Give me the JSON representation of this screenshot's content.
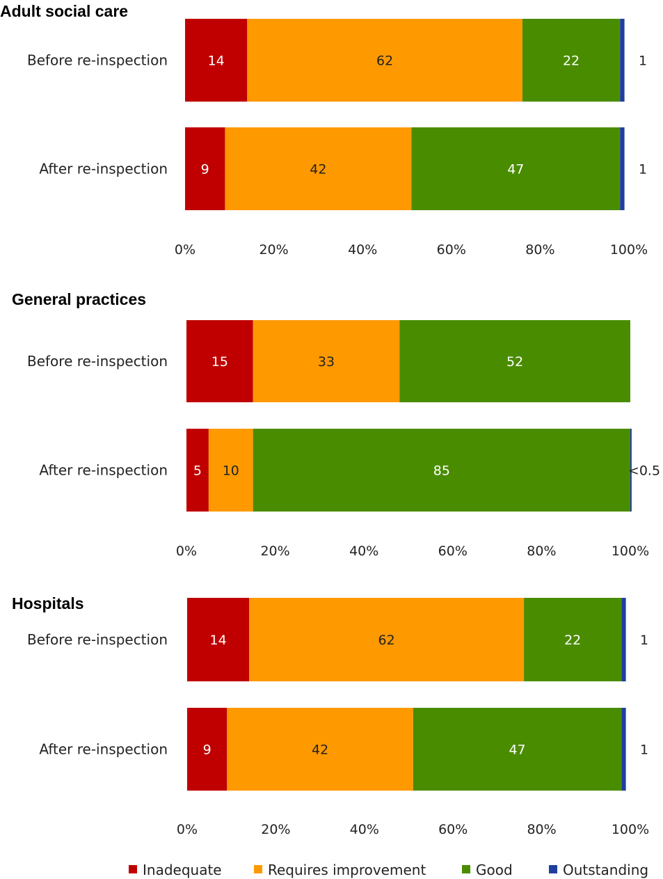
{
  "chart_data": [
    {
      "type": "bar",
      "orientation": "horizontal",
      "stacked": "percent",
      "title": "Adult social care",
      "categories": [
        "Before re-inspection",
        "After re-inspection"
      ],
      "series": [
        {
          "name": "Inadequate",
          "values": [
            14,
            9
          ],
          "labels": [
            "14",
            "9"
          ]
        },
        {
          "name": "Requires improvement",
          "values": [
            62,
            42
          ],
          "labels": [
            "62",
            "42"
          ]
        },
        {
          "name": "Good",
          "values": [
            22,
            47
          ],
          "labels": [
            "22",
            "47"
          ]
        },
        {
          "name": "Outstanding",
          "values": [
            1,
            1
          ],
          "labels": [
            "1",
            "1"
          ]
        }
      ],
      "xticks": [
        "0%",
        "20%",
        "40%",
        "60%",
        "80%",
        "100%"
      ],
      "xlim": [
        0,
        100
      ]
    },
    {
      "type": "bar",
      "orientation": "horizontal",
      "stacked": "percent",
      "title": "General practices",
      "categories": [
        "Before re-inspection",
        "After re-inspection"
      ],
      "series": [
        {
          "name": "Inadequate",
          "values": [
            15,
            5
          ],
          "labels": [
            "15",
            "5"
          ]
        },
        {
          "name": "Requires improvement",
          "values": [
            33,
            10
          ],
          "labels": [
            "33",
            "10"
          ]
        },
        {
          "name": "Good",
          "values": [
            52,
            85
          ],
          "labels": [
            "52",
            "85"
          ]
        },
        {
          "name": "Outstanding",
          "values": [
            0,
            0.3
          ],
          "labels": [
            "",
            "<0.5"
          ]
        }
      ],
      "xticks": [
        "0%",
        "20%",
        "40%",
        "60%",
        "80%",
        "100%"
      ],
      "xlim": [
        0,
        100
      ]
    },
    {
      "type": "bar",
      "orientation": "horizontal",
      "stacked": "percent",
      "title": "Hospitals",
      "categories": [
        "Before re-inspection",
        "After re-inspection"
      ],
      "series": [
        {
          "name": "Inadequate",
          "values": [
            14,
            9
          ],
          "labels": [
            "14",
            "9"
          ]
        },
        {
          "name": "Requires improvement",
          "values": [
            62,
            42
          ],
          "labels": [
            "62",
            "42"
          ]
        },
        {
          "name": "Good",
          "values": [
            22,
            47
          ],
          "labels": [
            "22",
            "47"
          ]
        },
        {
          "name": "Outstanding",
          "values": [
            1,
            1
          ],
          "labels": [
            "1",
            "1"
          ]
        }
      ],
      "xticks": [
        "0%",
        "20%",
        "40%",
        "60%",
        "80%",
        "100%"
      ],
      "xlim": [
        0,
        100
      ]
    }
  ],
  "legend": {
    "placement": "bottom",
    "items": [
      {
        "name": "Inadequate",
        "color": "#C00000"
      },
      {
        "name": "Requires improvement",
        "color": "#FF9900"
      },
      {
        "name": "Good",
        "color": "#4A8C00"
      },
      {
        "name": "Outstanding",
        "color": "#1F3FA0"
      }
    ]
  },
  "colors": {
    "Inadequate": "#C00000",
    "Requires improvement": "#FF9900",
    "Good": "#4A8C00",
    "Outstanding": "#1F3FA0"
  },
  "label_colors": {
    "Inadequate": "#ffffff",
    "Requires improvement": "#222222",
    "Good": "#ffffff"
  }
}
